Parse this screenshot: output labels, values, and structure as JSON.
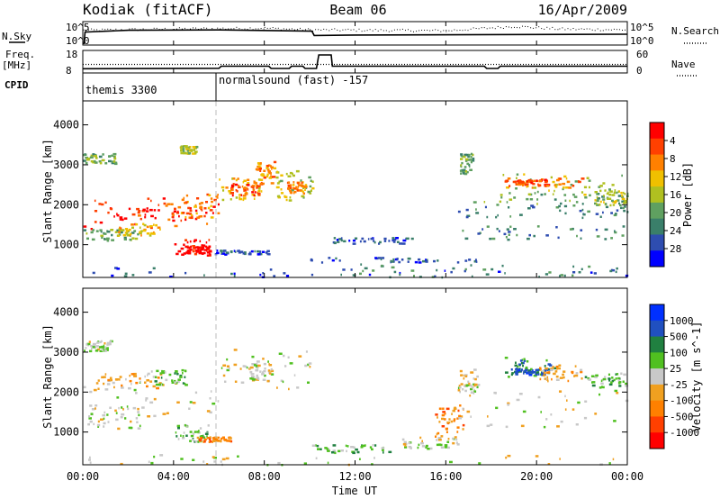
{
  "header": {
    "station": "Kodiak (fitACF)",
    "beam": "Beam 06",
    "date": "16/Apr/2009"
  },
  "panel_labels": {
    "nsky": "N.Sky",
    "nsearch": "N.Search",
    "freq_line1": "Freq.",
    "freq_line2": "[MHz]",
    "nave": "Nave",
    "cpid": "CPID"
  },
  "cpid_labels": [
    "themis 3300",
    "normalsound (fast) -157"
  ],
  "colors": {
    "power_scale": [
      "#0000ff",
      "#2e4db0",
      "#3a7f6a",
      "#5fa060",
      "#b0c020",
      "#f0c000",
      "#ff8000",
      "#ff4000",
      "#ff0000"
    ],
    "velocity_scale": [
      "#ff0000",
      "#ff4000",
      "#ff8000",
      "#f0a020",
      "#c8c8c8",
      "#50c020",
      "#208040",
      "#2050c0",
      "#0030ff"
    ]
  },
  "chart_data": [
    {
      "type": "line",
      "title": "",
      "ylabel_left": "N.Sky",
      "ylabel_right": "N.Search",
      "left_ticks": [
        "10^5",
        "10^0"
      ],
      "right_ticks": [
        "10^5",
        "10^0"
      ],
      "x": [
        "00:00",
        "04:00",
        "08:00",
        "12:00",
        "16:00",
        "20:00",
        "00:00"
      ],
      "series": [
        {
          "name": "N.Sky",
          "values_hours": [
            [
              0.05,
              0
            ],
            [
              0.1,
              2.8
            ],
            [
              2,
              3.2
            ],
            [
              6,
              3.3
            ],
            [
              10.1,
              3.0
            ],
            [
              10.2,
              2.0
            ],
            [
              12,
              2.1
            ],
            [
              18,
              2.2
            ],
            [
              24,
              2.3
            ]
          ]
        },
        {
          "name": "N.Search",
          "values_hours": [
            [
              0,
              3.3
            ],
            [
              4,
              3.6
            ],
            [
              8,
              3.8
            ],
            [
              10,
              3.4
            ],
            [
              16,
              3.2
            ],
            [
              19,
              4.2
            ],
            [
              21,
              3.6
            ],
            [
              24,
              3.4
            ]
          ]
        }
      ]
    },
    {
      "type": "line",
      "ylabel_left": "Freq. [MHz]",
      "ylabel_right": "Nave",
      "left_ticks": [
        "18",
        "8"
      ],
      "right_ticks": [
        "60",
        "0"
      ],
      "series": [
        {
          "name": "Freq.",
          "values_hours": [
            [
              0,
              9.9
            ],
            [
              6,
              10.1
            ],
            [
              6.1,
              11.0
            ],
            [
              8.2,
              11.0
            ],
            [
              8.3,
              10.0
            ],
            [
              9.1,
              10.0
            ],
            [
              9.2,
              11.0
            ],
            [
              9.7,
              11.0
            ],
            [
              9.8,
              10.0
            ],
            [
              10.3,
              10.0
            ],
            [
              10.4,
              16.0
            ],
            [
              10.95,
              16.0
            ],
            [
              11.0,
              11.0
            ],
            [
              17.7,
              11.0
            ],
            [
              17.8,
              10.0
            ],
            [
              18.3,
              10.0
            ],
            [
              18.4,
              11.0
            ],
            [
              24,
              11.0
            ]
          ]
        },
        {
          "name": "Nave",
          "values_hours": [
            [
              0,
              11.8
            ],
            [
              24,
              11.8
            ]
          ]
        }
      ]
    },
    {
      "type": "heatmap",
      "title": "Power",
      "xlabel": "Time UT",
      "ylabel": "Slant Range [km]",
      "x_ticks": [
        "00:00",
        "04:00",
        "08:00",
        "12:00",
        "16:00",
        "20:00",
        "00:00"
      ],
      "xlim_hours": [
        0,
        24
      ],
      "y_ticks": [
        1000,
        2000,
        3000,
        4000
      ],
      "ylim": [
        180,
        4600
      ],
      "colorbar_label": "Power [dB]",
      "colorbar_ticks": [
        4,
        8,
        12,
        16,
        20,
        24,
        28
      ],
      "regions": [
        {
          "t": [
            0.0,
            6.0
          ],
          "r": [
            1400,
            2200
          ],
          "level": 7
        },
        {
          "t": [
            1.0,
            5.5
          ],
          "r": [
            1650,
            1950
          ],
          "level": 8
        },
        {
          "t": [
            0.0,
            2.5
          ],
          "r": [
            1100,
            1400
          ],
          "level": 3
        },
        {
          "t": [
            1.5,
            3.5
          ],
          "r": [
            1250,
            1550
          ],
          "level": 5
        },
        {
          "t": [
            3.5,
            6.0
          ],
          "r": [
            1700,
            2300
          ],
          "level": 6
        },
        {
          "t": [
            6.0,
            8.0
          ],
          "r": [
            2100,
            2700
          ],
          "level": 5
        },
        {
          "t": [
            6.5,
            7.8
          ],
          "r": [
            2250,
            2550
          ],
          "level": 7
        },
        {
          "t": [
            7.5,
            8.5
          ],
          "r": [
            2500,
            3100
          ],
          "level": 6
        },
        {
          "t": [
            8.5,
            10.1
          ],
          "r": [
            2100,
            2900
          ],
          "level": 4
        },
        {
          "t": [
            9.0,
            9.8
          ],
          "r": [
            2300,
            2600
          ],
          "level": 6
        },
        {
          "t": [
            4.0,
            5.8
          ],
          "r": [
            750,
            1150
          ],
          "level": 8
        },
        {
          "t": [
            4.5,
            5.5
          ],
          "r": [
            800,
            1000
          ],
          "level": 8
        },
        {
          "t": [
            5.8,
            8.2
          ],
          "r": [
            780,
            880
          ],
          "level": 1
        },
        {
          "t": [
            0.0,
            1.4
          ],
          "r": [
            3050,
            3300
          ],
          "level": 3
        },
        {
          "t": [
            4.2,
            5.0
          ],
          "r": [
            3300,
            3500
          ],
          "level": 4
        },
        {
          "t": [
            11.0,
            14.5
          ],
          "r": [
            1050,
            1200
          ],
          "level": 1
        },
        {
          "t": [
            10.0,
            17.5
          ],
          "r": [
            580,
            700
          ],
          "level": 1
        },
        {
          "t": [
            0.0,
            24.0
          ],
          "r": [
            200,
            450
          ],
          "level": 1
        },
        {
          "t": [
            10.0,
            24.0
          ],
          "r": [
            200,
            550
          ],
          "level": 2
        },
        {
          "t": [
            16.5,
            24.0
          ],
          "r": [
            1150,
            1500
          ],
          "level": 2
        },
        {
          "t": [
            16.5,
            24.0
          ],
          "r": [
            1700,
            2000
          ],
          "level": 2
        },
        {
          "t": [
            17.0,
            24.0
          ],
          "r": [
            2000,
            2300
          ],
          "level": 3
        },
        {
          "t": [
            18.5,
            24.0
          ],
          "r": [
            2250,
            2800
          ],
          "level": 4
        },
        {
          "t": [
            18.5,
            22.0
          ],
          "r": [
            2450,
            2700
          ],
          "level": 6
        },
        {
          "t": [
            19.0,
            20.5
          ],
          "r": [
            2500,
            2650
          ],
          "level": 7
        },
        {
          "t": [
            16.6,
            17.2
          ],
          "r": [
            2800,
            3300
          ],
          "level": 3
        },
        {
          "t": [
            22.5,
            24.0
          ],
          "r": [
            2000,
            2400
          ],
          "level": 4
        }
      ]
    },
    {
      "type": "heatmap",
      "title": "Velocity",
      "xlabel": "Time UT",
      "ylabel": "Slant Range [km]",
      "x_ticks": [
        "00:00",
        "04:00",
        "08:00",
        "12:00",
        "16:00",
        "20:00",
        "00:00"
      ],
      "xlim_hours": [
        0,
        24
      ],
      "y_ticks": [
        1000,
        2000,
        3000,
        4000
      ],
      "ylim": [
        180,
        4600
      ],
      "colorbar_label": "Velocity [m s^-1]",
      "colorbar_ticks": [
        1000,
        500,
        100,
        25,
        -25,
        -100,
        -500,
        -1000
      ],
      "regions": [
        {
          "t": [
            0.0,
            6.0
          ],
          "r": [
            1400,
            2300
          ],
          "level": 4
        },
        {
          "t": [
            0.0,
            2.5
          ],
          "r": [
            1100,
            1700
          ],
          "level": 4
        },
        {
          "t": [
            0.5,
            3.5
          ],
          "r": [
            2100,
            2500
          ],
          "level": 3
        },
        {
          "t": [
            3.0,
            4.5
          ],
          "r": [
            2200,
            2600
          ],
          "level": 5
        },
        {
          "t": [
            6.0,
            10.2
          ],
          "r": [
            2100,
            3100
          ],
          "level": 4
        },
        {
          "t": [
            7.3,
            8.3
          ],
          "r": [
            2300,
            2800
          ],
          "level": 4
        },
        {
          "t": [
            4.0,
            5.5
          ],
          "r": [
            780,
            1200
          ],
          "level": 5
        },
        {
          "t": [
            5.0,
            6.5
          ],
          "r": [
            780,
            900
          ],
          "level": 2
        },
        {
          "t": [
            10.0,
            13.5
          ],
          "r": [
            500,
            700
          ],
          "level": 5
        },
        {
          "t": [
            0.0,
            24.0
          ],
          "r": [
            200,
            450
          ],
          "level": 4
        },
        {
          "t": [
            14.0,
            16.5
          ],
          "r": [
            600,
            900
          ],
          "level": 4
        },
        {
          "t": [
            15.5,
            16.8
          ],
          "r": [
            900,
            1700
          ],
          "level": 2
        },
        {
          "t": [
            16.5,
            17.5
          ],
          "r": [
            2000,
            2600
          ],
          "level": 4
        },
        {
          "t": [
            16.5,
            24.0
          ],
          "r": [
            1150,
            2100
          ],
          "level": 4
        },
        {
          "t": [
            18.5,
            21.0
          ],
          "r": [
            2400,
            2900
          ],
          "level": 6
        },
        {
          "t": [
            19.0,
            20.5
          ],
          "r": [
            2450,
            2600
          ],
          "level": 7
        },
        {
          "t": [
            20.0,
            22.0
          ],
          "r": [
            2300,
            2700
          ],
          "level": 3
        },
        {
          "t": [
            22.0,
            24.0
          ],
          "r": [
            2100,
            2500
          ],
          "level": 5
        },
        {
          "t": [
            0.0,
            1.4
          ],
          "r": [
            3050,
            3300
          ],
          "level": 4
        }
      ]
    }
  ]
}
